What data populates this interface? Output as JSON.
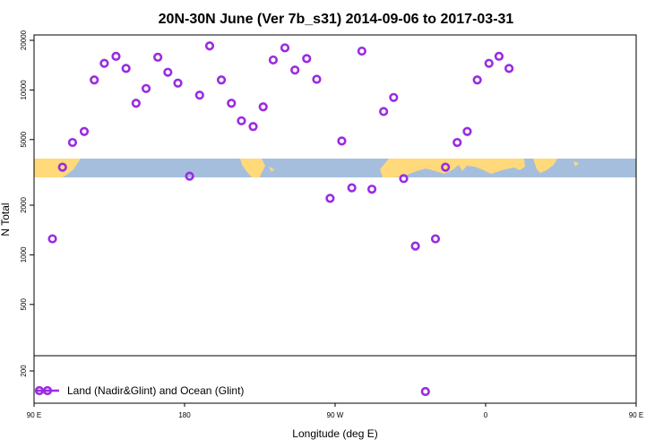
{
  "chart_data": {
    "type": "scatter",
    "title": "20N-30N June (Ver 7b_s31)   2014-09-06 to 2017-03-31",
    "xlabel": "Longitude (deg E)",
    "ylabel": "N Total",
    "x_scale": "longitude",
    "y_scale": "log",
    "xlim": [
      90,
      450
    ],
    "ylim": [
      130,
      25000
    ],
    "x_ticks": [
      {
        "value": 90,
        "label": "90 E"
      },
      {
        "value": 180,
        "label": "180"
      },
      {
        "value": 270,
        "label": "90 W"
      },
      {
        "value": 360,
        "label": "0"
      },
      {
        "value": 450,
        "label": "90 E"
      },
      {
        "value": 540,
        "label": "180"
      }
    ],
    "y_ticks": [
      {
        "value": 200,
        "label": "200"
      },
      {
        "value": 500,
        "label": "500"
      },
      {
        "value": 1000,
        "label": "1000"
      },
      {
        "value": 2000,
        "label": "2000"
      },
      {
        "value": 5000,
        "label": "5000"
      },
      {
        "value": 10000,
        "label": "10000"
      },
      {
        "value": 20000,
        "label": "20000"
      }
    ],
    "map_strip": {
      "lat_range": "20N-30N",
      "colors": {
        "land": "#FFD97A",
        "ocean": "#A5BEDD"
      }
    },
    "legend": {
      "position": "bottom-left",
      "entries": [
        "Land (Nadir&Glint) and Ocean (Glint)"
      ]
    },
    "series": [
      {
        "name": "Land (Nadir&Glint) and Ocean (Glint)",
        "color": "#9A2BE2",
        "points": [
          {
            "x": 101,
            "y": 1250
          },
          {
            "x": 107,
            "y": 3400
          },
          {
            "x": 113,
            "y": 4800
          },
          {
            "x": 120,
            "y": 5600
          },
          {
            "x": 126,
            "y": 11500
          },
          {
            "x": 132,
            "y": 14500
          },
          {
            "x": 139,
            "y": 16000
          },
          {
            "x": 145,
            "y": 13500
          },
          {
            "x": 151,
            "y": 8300
          },
          {
            "x": 157,
            "y": 10200
          },
          {
            "x": 164,
            "y": 15800
          },
          {
            "x": 170,
            "y": 12800
          },
          {
            "x": 176,
            "y": 11000
          },
          {
            "x": 183,
            "y": 3000
          },
          {
            "x": 189,
            "y": 9300
          },
          {
            "x": 195,
            "y": 18500
          },
          {
            "x": 202,
            "y": 11500
          },
          {
            "x": 208,
            "y": 8300
          },
          {
            "x": 214,
            "y": 6500
          },
          {
            "x": 221,
            "y": 6000
          },
          {
            "x": 227,
            "y": 7900
          },
          {
            "x": 233,
            "y": 15200
          },
          {
            "x": 240,
            "y": 18000
          },
          {
            "x": 246,
            "y": 13200
          },
          {
            "x": 253,
            "y": 15500
          },
          {
            "x": 259,
            "y": 11600
          },
          {
            "x": 267,
            "y": 2200
          },
          {
            "x": 274,
            "y": 4900
          },
          {
            "x": 280,
            "y": 2550
          },
          {
            "x": 286,
            "y": 17200
          },
          {
            "x": 292,
            "y": 2500
          },
          {
            "x": 299,
            "y": 7400
          },
          {
            "x": 305,
            "y": 9000
          },
          {
            "x": 311,
            "y": 2900
          },
          {
            "x": 318,
            "y": 1130
          },
          {
            "x": 324,
            "y": 150
          },
          {
            "x": 330,
            "y": 1250
          },
          {
            "x": 336,
            "y": 3400
          },
          {
            "x": 343,
            "y": 4800
          },
          {
            "x": 349,
            "y": 5600
          },
          {
            "x": 355,
            "y": 11500
          },
          {
            "x": 362,
            "y": 14500
          },
          {
            "x": 368,
            "y": 16000
          },
          {
            "x": 374,
            "y": 13500
          }
        ]
      }
    ]
  }
}
